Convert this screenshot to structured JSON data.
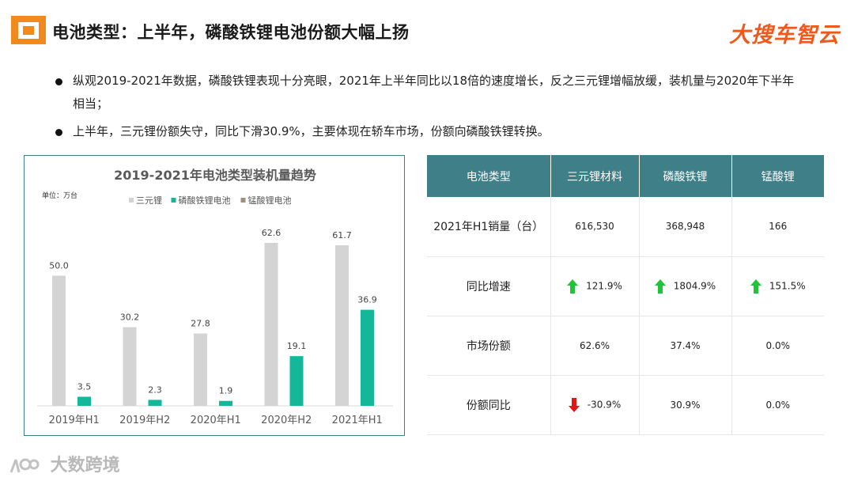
{
  "header": {
    "title": "电池类型：上半年，磷酸铁锂电池份额大幅上扬",
    "brand": "大搜车智云"
  },
  "bullets": [
    "纵观2019-2021年数据，磷酸铁锂表现十分亮眼，2021年上半年同比以18倍的速度增长，反之三元锂增幅放缓，装机量与2020年下半年相当；",
    "上半年，三元锂份额失守，同比下滑30.9%，主要体现在轿车市场，份额向磷酸铁锂转换。"
  ],
  "chart_data": {
    "type": "bar",
    "title": "2019-2021年电池类型装机量趋势",
    "unit_label": "单位：万台",
    "categories": [
      "2019年H1",
      "2019年H2",
      "2020年H1",
      "2020年H2",
      "2021年H1"
    ],
    "series": [
      {
        "name": "三元锂",
        "values": [
          50.0,
          30.2,
          27.8,
          62.6,
          61.7
        ],
        "color": "#d4d4d4"
      },
      {
        "name": "磷酸铁锂电池",
        "values": [
          3.5,
          2.3,
          1.9,
          19.1,
          36.9
        ],
        "color": "#14b79a"
      },
      {
        "name": "锰酸锂电池",
        "values": [
          0,
          0,
          0,
          0,
          0
        ],
        "color": "#9e8f7a"
      }
    ],
    "value_labels": [
      [
        "50.0",
        "30.2",
        "27.8",
        "62.6",
        "61.7"
      ],
      [
        "3.5",
        "2.3",
        "1.9",
        "19.1",
        "36.9"
      ]
    ],
    "ylim": [
      0,
      70
    ],
    "grid": false,
    "legend_position": "top"
  },
  "table": {
    "headers": [
      "电池类型",
      "三元锂材料",
      "磷酸铁锂",
      "锰酸锂"
    ],
    "rows": [
      {
        "label": "2021年H1销量（台）",
        "cells": [
          {
            "text": "616,530"
          },
          {
            "text": "368,948"
          },
          {
            "text": "166"
          }
        ]
      },
      {
        "label": "同比增速",
        "cells": [
          {
            "text": "121.9%",
            "arrow": "up"
          },
          {
            "text": "1804.9%",
            "arrow": "up"
          },
          {
            "text": "151.5%",
            "arrow": "up"
          }
        ]
      },
      {
        "label": "市场份额",
        "cells": [
          {
            "text": "62.6%"
          },
          {
            "text": "37.4%"
          },
          {
            "text": "0.0%"
          }
        ]
      },
      {
        "label": "份额同比",
        "cells": [
          {
            "text": "-30.9%",
            "arrow": "down"
          },
          {
            "text": "30.9%"
          },
          {
            "text": "0.0%"
          }
        ]
      }
    ],
    "colors": {
      "header_bg": "#3f7f88",
      "up": "#22c33b",
      "down": "#e01818"
    }
  },
  "watermark": "大数跨境"
}
